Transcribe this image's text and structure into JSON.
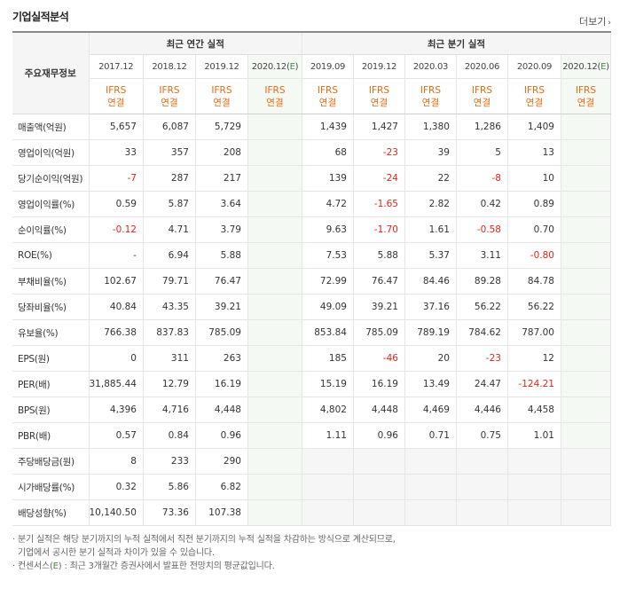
{
  "section_title": "기업실적분석",
  "more_label": "더보기",
  "more_arrow": "›",
  "row_header_label": "주요재무정보",
  "annual_header": "최근 연간 실적",
  "quarter_header": "최근 분기 실적",
  "annual_periods": [
    "2017.12",
    "2018.12",
    "2019.12",
    "2020.12(E)"
  ],
  "quarter_periods": [
    "2019.09",
    "2019.12",
    "2020.03",
    "2020.06",
    "2020.09",
    "2020.12(E)"
  ],
  "ifrs_label": "IFRS",
  "consol_label": "연결",
  "rows": [
    {
      "label": "매출액(억원)",
      "annual": [
        "5,657",
        "6,087",
        "5,729",
        ""
      ],
      "quarter": [
        "1,439",
        "1,427",
        "1,380",
        "1,286",
        "1,409",
        ""
      ]
    },
    {
      "label": "영업이익(억원)",
      "annual": [
        "33",
        "357",
        "208",
        ""
      ],
      "quarter": [
        "68",
        "-23",
        "39",
        "5",
        "13",
        ""
      ]
    },
    {
      "label": "당기순이익(억원)",
      "annual": [
        "-7",
        "287",
        "217",
        ""
      ],
      "quarter": [
        "139",
        "-24",
        "22",
        "-8",
        "10",
        ""
      ]
    },
    {
      "label": "영업이익률(%)",
      "annual": [
        "0.59",
        "5.87",
        "3.64",
        ""
      ],
      "quarter": [
        "4.72",
        "-1.65",
        "2.82",
        "0.42",
        "0.89",
        ""
      ]
    },
    {
      "label": "순이익률(%)",
      "annual": [
        "-0.12",
        "4.71",
        "3.79",
        ""
      ],
      "quarter": [
        "9.63",
        "-1.70",
        "1.61",
        "-0.58",
        "0.70",
        ""
      ]
    },
    {
      "label": "ROE(%)",
      "annual": [
        "-",
        "6.94",
        "5.88",
        ""
      ],
      "quarter": [
        "7.53",
        "5.88",
        "5.37",
        "3.11",
        "-0.80",
        ""
      ]
    },
    {
      "label": "부채비율(%)",
      "annual": [
        "102.67",
        "79.71",
        "76.47",
        ""
      ],
      "quarter": [
        "72.99",
        "76.47",
        "84.46",
        "89.28",
        "84.78",
        ""
      ]
    },
    {
      "label": "당좌비율(%)",
      "annual": [
        "40.84",
        "43.35",
        "39.21",
        ""
      ],
      "quarter": [
        "49.09",
        "39.21",
        "37.16",
        "56.22",
        "56.22",
        ""
      ]
    },
    {
      "label": "유보율(%)",
      "annual": [
        "766.38",
        "837.83",
        "785.09",
        ""
      ],
      "quarter": [
        "853.84",
        "785.09",
        "789.19",
        "784.62",
        "787.00",
        ""
      ]
    },
    {
      "label": "EPS(원)",
      "annual": [
        "0",
        "311",
        "263",
        ""
      ],
      "quarter": [
        "185",
        "-46",
        "20",
        "-23",
        "12",
        ""
      ]
    },
    {
      "label": "PER(배)",
      "annual": [
        "31,885.44",
        "12.79",
        "16.19",
        ""
      ],
      "quarter": [
        "15.19",
        "16.19",
        "13.49",
        "24.47",
        "-124.21",
        ""
      ]
    },
    {
      "label": "BPS(원)",
      "annual": [
        "4,396",
        "4,716",
        "4,448",
        ""
      ],
      "quarter": [
        "4,802",
        "4,448",
        "4,469",
        "4,446",
        "4,458",
        ""
      ]
    },
    {
      "label": "PBR(배)",
      "annual": [
        "0.57",
        "0.84",
        "0.96",
        ""
      ],
      "quarter": [
        "1.11",
        "0.96",
        "0.71",
        "0.75",
        "1.01",
        ""
      ]
    },
    {
      "label": "주당배당금(원)",
      "annual": [
        "8",
        "233",
        "290",
        ""
      ],
      "quarter": [
        "",
        "",
        "",
        "",
        "",
        ""
      ]
    },
    {
      "label": "시가배당률(%)",
      "annual": [
        "0.32",
        "5.86",
        "6.82",
        ""
      ],
      "quarter": [
        "",
        "",
        "",
        "",
        "",
        ""
      ]
    },
    {
      "label": "배당성향(%)",
      "annual": [
        "10,140.50",
        "73.36",
        "107.38",
        ""
      ],
      "quarter": [
        "",
        "",
        "",
        "",
        "",
        ""
      ]
    }
  ],
  "notes": {
    "line1": "· 분기 실적은 해당 분기까지의 누적 실적에서 직전 분기까지의 누적 실적을 차감하는 방식으로 계산되므로,",
    "line2": "  기업에서 공시한 분기 실적과 차이가 있을 수 있습니다.",
    "line3_pre": "· 컨센서스(",
    "line3_e": "E",
    "line3_post": ") : 최근 3개월간 증권사에서 발표한 전망치의 평균값입니다."
  },
  "colors": {
    "negative": "#e0251b",
    "ifrs": "#e56a12",
    "estimate_bg": "#f5f9f4",
    "estimate_mark": "#3f8f3f"
  }
}
